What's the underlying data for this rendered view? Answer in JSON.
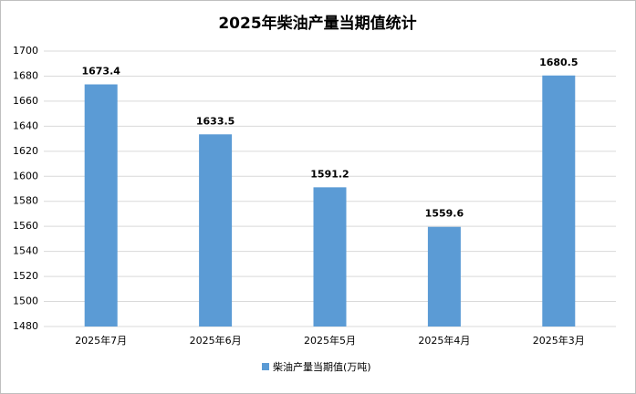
{
  "chart_data": {
    "type": "bar",
    "title": "2025年柴油产量当期值统计",
    "categories": [
      "2025年7月",
      "2025年6月",
      "2025年5月",
      "2025年4月",
      "2025年3月"
    ],
    "series": [
      {
        "name": "柴油产量当期值(万吨)",
        "color": "#5b9bd5",
        "values": [
          1673.4,
          1633.5,
          1591.2,
          1559.6,
          1680.5
        ]
      }
    ],
    "ylim": [
      1480,
      1700
    ],
    "yticks": [
      1480,
      1500,
      1520,
      1540,
      1560,
      1580,
      1600,
      1620,
      1640,
      1660,
      1680,
      1700
    ],
    "grid": true,
    "legend": "bottom"
  }
}
